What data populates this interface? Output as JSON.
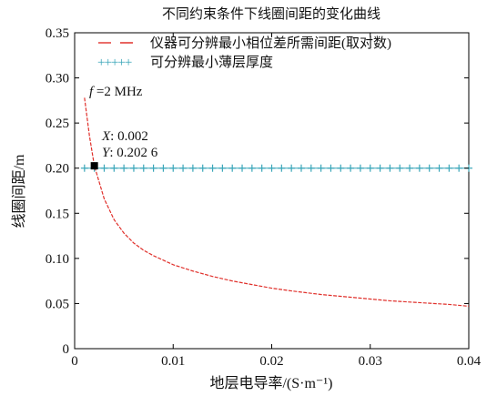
{
  "chart_data": {
    "type": "line",
    "title": "不同约束条件下线圈间距的变化曲线",
    "xlabel": "地层电导率/(S·m⁻¹)",
    "ylabel": "线圈间距/m",
    "xlim": [
      0,
      0.04
    ],
    "ylim": [
      0,
      0.35
    ],
    "x_ticks": [
      0,
      0.01,
      0.02,
      0.03,
      0.04
    ],
    "x_tick_labels": [
      "0",
      "0.01",
      "0.02",
      "0.03",
      "0.04"
    ],
    "y_ticks": [
      0,
      0.05,
      0.1,
      0.15,
      0.2,
      0.25,
      0.3,
      0.35
    ],
    "y_tick_labels": [
      "0",
      "0.05",
      "0.10",
      "0.15",
      "0.20",
      "0.25",
      "0.30",
      "0.35"
    ],
    "grid": false,
    "legend_position": "top-left",
    "series": [
      {
        "name": "仪器可分辨最小相位差所需间距(取对数)",
        "style": "dashed",
        "color": "#e0302b",
        "x": [
          0.001,
          0.0015,
          0.002,
          0.003,
          0.004,
          0.005,
          0.006,
          0.007,
          0.008,
          0.009,
          0.01,
          0.012,
          0.014,
          0.016,
          0.018,
          0.02,
          0.022,
          0.025,
          0.028,
          0.03,
          0.032,
          0.035,
          0.038,
          0.04
        ],
        "y": [
          0.278,
          0.236,
          0.2026,
          0.166,
          0.143,
          0.128,
          0.117,
          0.109,
          0.103,
          0.098,
          0.093,
          0.086,
          0.08,
          0.075,
          0.071,
          0.067,
          0.064,
          0.06,
          0.057,
          0.055,
          0.053,
          0.051,
          0.049,
          0.047
        ]
      },
      {
        "name": "可分辨最小薄层厚度",
        "style": "plus-markers",
        "color": "#3aa6b9",
        "legend_symbol": "+++++",
        "y_constant": 0.2,
        "x_start": 0.001,
        "x_end": 0.04,
        "marker_count": 40
      }
    ],
    "annotations": {
      "frequency": {
        "text_italic": "f",
        "text_rest": " =2 MHz",
        "x": 0.0012,
        "y": 0.272
      },
      "datatip": {
        "x": 0.002,
        "y": 0.2026,
        "x_label": "X",
        "x_value": ": 0.002",
        "y_label": "Y",
        "y_value": ": 0.202 6"
      }
    }
  }
}
